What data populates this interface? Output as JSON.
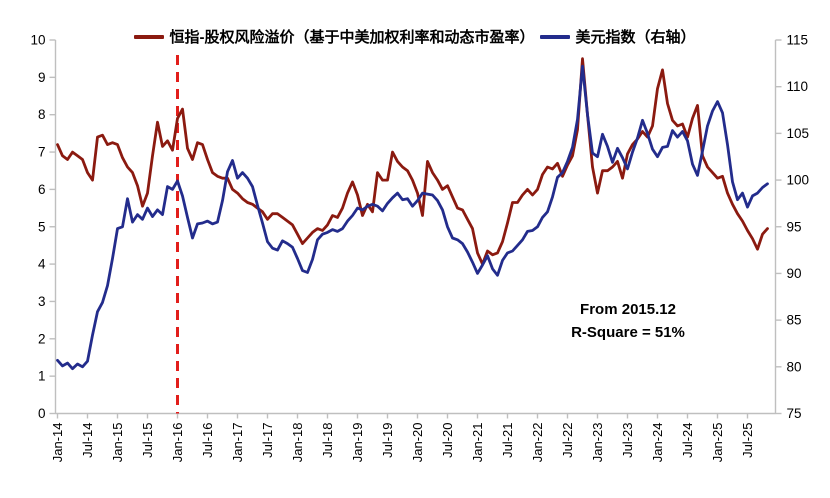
{
  "chart_data": {
    "type": "line",
    "title": "",
    "x_unit": "month",
    "x_range_text": "Jan-14 to Nov-25",
    "x_tick_labels": [
      "Jan-14",
      "Jul-14",
      "Jan-15",
      "Jul-15",
      "Jan-16",
      "Jul-16",
      "Jan-17",
      "Jul-17",
      "Jan-18",
      "Jul-18",
      "Jan-19",
      "Jul-19",
      "Jan-20",
      "Jul-20",
      "Jan-21",
      "Jul-21",
      "Jan-22",
      "Jul-22",
      "Jan-23",
      "Jul-23",
      "Jan-24",
      "Jul-24",
      "Jan-25",
      "Jul-25"
    ],
    "left_axis": {
      "min": 0,
      "max": 10,
      "step": 1,
      "ticks": [
        0,
        1,
        2,
        3,
        4,
        5,
        6,
        7,
        8,
        9,
        10
      ]
    },
    "right_axis": {
      "min": 75,
      "max": 115,
      "step": 5,
      "ticks": [
        75,
        80,
        85,
        90,
        95,
        100,
        105,
        110,
        115
      ]
    },
    "grid": false,
    "legend_position": "top-center",
    "axis_color": "#BFBFBF",
    "dashed_line": {
      "x_index": 24,
      "label_month": "2015.12",
      "color": "#E21E1B"
    },
    "annotation": {
      "line1": "From 2015.12",
      "line2": "R-Square = 51%"
    },
    "series": [
      {
        "name": "恒指-股权风险溢价（基于中美加权利率和动态市盈率）",
        "axis": "left",
        "color": "#8B1A10",
        "values": [
          7.2,
          6.9,
          6.8,
          7.0,
          6.9,
          6.8,
          6.45,
          6.25,
          7.4,
          7.45,
          7.2,
          7.25,
          7.2,
          6.85,
          6.6,
          6.45,
          6.1,
          5.55,
          5.9,
          6.9,
          7.8,
          7.15,
          7.3,
          7.05,
          7.9,
          8.15,
          7.1,
          6.8,
          7.25,
          7.2,
          6.8,
          6.45,
          6.35,
          6.3,
          6.3,
          6.0,
          5.9,
          5.75,
          5.65,
          5.6,
          5.5,
          5.4,
          5.2,
          5.35,
          5.35,
          5.25,
          5.15,
          5.05,
          4.8,
          4.55,
          4.7,
          4.85,
          4.95,
          4.9,
          5.05,
          5.3,
          5.25,
          5.5,
          5.9,
          6.2,
          5.85,
          5.3,
          5.6,
          5.4,
          6.45,
          6.25,
          6.25,
          7.0,
          6.75,
          6.6,
          6.5,
          6.25,
          5.9,
          5.3,
          6.75,
          6.45,
          6.25,
          6.0,
          6.1,
          5.8,
          5.5,
          5.45,
          5.2,
          4.95,
          4.3,
          4.0,
          4.35,
          4.25,
          4.3,
          4.6,
          5.1,
          5.65,
          5.65,
          5.85,
          6.0,
          5.85,
          6.0,
          6.4,
          6.6,
          6.55,
          6.7,
          6.35,
          6.65,
          6.9,
          7.6,
          9.5,
          8.0,
          6.6,
          5.9,
          6.5,
          6.5,
          6.6,
          6.75,
          6.3,
          6.95,
          7.2,
          7.35,
          7.55,
          7.4,
          7.7,
          8.7,
          9.2,
          8.3,
          7.85,
          7.7,
          7.75,
          7.4,
          7.9,
          8.25,
          6.9,
          6.6,
          6.45,
          6.3,
          6.35,
          5.9,
          5.6,
          5.35,
          5.15,
          4.9,
          4.68,
          4.4,
          4.8,
          4.95
        ]
      },
      {
        "name": "美元指数（右轴）",
        "axis": "right",
        "color": "#232C8C",
        "values": [
          80.7,
          80.1,
          80.4,
          79.8,
          80.3,
          80.0,
          80.6,
          83.4,
          85.9,
          86.9,
          88.7,
          91.6,
          94.8,
          95.0,
          98.0,
          95.5,
          96.3,
          95.8,
          97.0,
          96.1,
          96.8,
          96.3,
          99.3,
          99.0,
          99.9,
          98.3,
          96.0,
          93.8,
          95.3,
          95.4,
          95.6,
          95.3,
          95.5,
          97.8,
          100.9,
          102.1,
          100.2,
          100.8,
          100.2,
          99.3,
          97.3,
          95.4,
          93.4,
          92.7,
          92.5,
          93.5,
          93.2,
          92.8,
          91.6,
          90.3,
          90.1,
          91.5,
          93.6,
          94.2,
          94.4,
          94.7,
          94.5,
          94.8,
          95.6,
          96.2,
          97.0,
          96.8,
          97.2,
          97.4,
          97.2,
          96.7,
          97.5,
          98.1,
          98.6,
          97.9,
          98.0,
          97.2,
          97.8,
          98.6,
          98.5,
          98.4,
          97.8,
          96.8,
          95.0,
          93.8,
          93.6,
          93.2,
          92.3,
          91.2,
          90.0,
          90.9,
          91.9,
          90.5,
          89.8,
          91.4,
          92.2,
          92.4,
          93.0,
          93.6,
          94.5,
          94.6,
          95.0,
          96.0,
          96.6,
          98.2,
          100.3,
          100.8,
          102.0,
          103.5,
          106.5,
          112.2,
          107.0,
          102.9,
          102.5,
          104.9,
          103.6,
          101.9,
          103.4,
          102.4,
          101.2,
          103.0,
          104.5,
          106.4,
          105.0,
          103.3,
          102.5,
          103.5,
          103.6,
          105.3,
          104.6,
          105.2,
          104.2,
          101.7,
          100.5,
          103.1,
          105.8,
          107.4,
          108.4,
          107.2,
          103.8,
          99.8,
          97.9,
          98.6,
          97.1,
          98.3,
          98.6,
          99.2,
          99.6
        ]
      }
    ]
  }
}
